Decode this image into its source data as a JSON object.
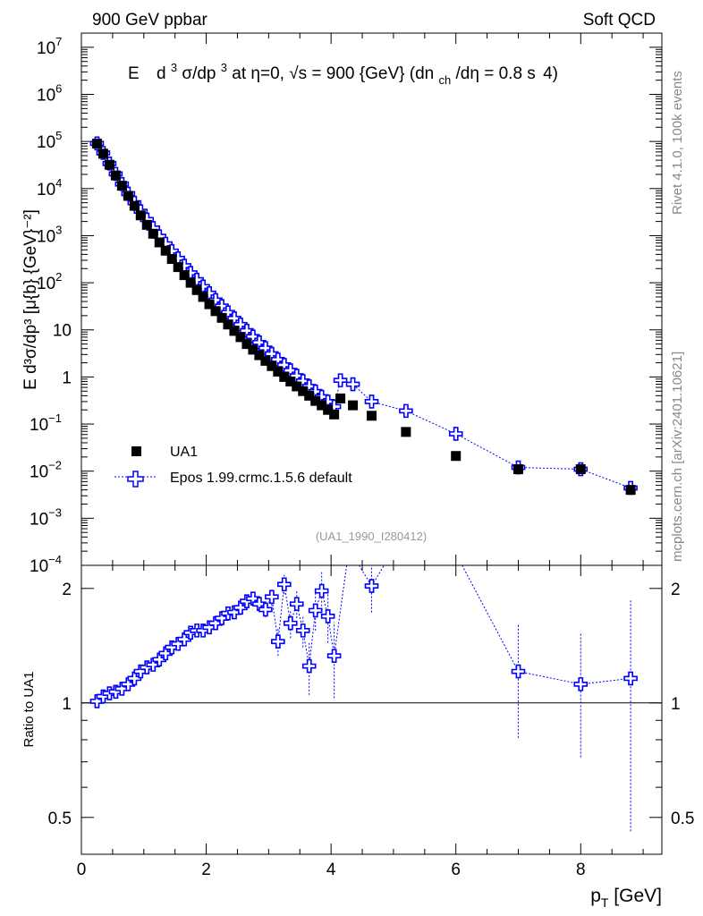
{
  "header": {
    "left": "900 GeV ppbar",
    "right": "Soft QCD"
  },
  "side_labels": {
    "top": "Rivet 4.1.0,  100k events",
    "bottom": "mcplots.cern.ch [arXiv:2401.10621]"
  },
  "chart_data": [
    {
      "type": "scatter",
      "panel": "main",
      "title_parts": {
        "e": "E",
        "d1": "d",
        "exp3": "3",
        "sigma": "σ/dp",
        "exp3b": "3",
        "eta": " at η=0, ",
        "sqrt": "√s",
        "mid": " = 900 {GeV} (dn",
        "sub": "ch",
        "tail": "/dη = 0.8 s",
        "end": "4)"
      },
      "ylabel": "E d³σ/dp³ [μ{b} {GeV}⁻²]",
      "yscale": "log",
      "ylim": [
        0.0001,
        20000000
      ],
      "xlim": [
        0,
        9.3
      ],
      "y_ticks": [
        {
          "value": 10000000,
          "label": "10",
          "exp": "7"
        },
        {
          "value": 1000000,
          "label": "10",
          "exp": "6"
        },
        {
          "value": 100000,
          "label": "10",
          "exp": "5"
        },
        {
          "value": 10000,
          "label": "10",
          "exp": "4"
        },
        {
          "value": 1000,
          "label": "10",
          "exp": "3"
        },
        {
          "value": 100,
          "label": "10",
          "exp": "2"
        },
        {
          "value": 10,
          "label": "10",
          "exp": ""
        },
        {
          "value": 1,
          "label": "1",
          "exp": ""
        },
        {
          "value": 0.1,
          "label": "10",
          "exp": "−1"
        },
        {
          "value": 0.01,
          "label": "10",
          "exp": "−2"
        },
        {
          "value": 0.001,
          "label": "10",
          "exp": "−3"
        },
        {
          "value": 0.0001,
          "label": "10",
          "exp": "−4"
        }
      ],
      "legend": {
        "data": "UA1",
        "mc": "Epos 1.99.crmc.1.5.6 default"
      },
      "analysis_tag": "(UA1_1990_I280412)",
      "series": [
        {
          "name": "UA1",
          "x": [
            0.25,
            0.35,
            0.45,
            0.55,
            0.65,
            0.75,
            0.85,
            0.95,
            1.05,
            1.15,
            1.25,
            1.35,
            1.45,
            1.55,
            1.65,
            1.75,
            1.85,
            1.95,
            2.05,
            2.15,
            2.25,
            2.35,
            2.45,
            2.55,
            2.65,
            2.75,
            2.85,
            2.95,
            3.05,
            3.15,
            3.25,
            3.35,
            3.45,
            3.55,
            3.65,
            3.75,
            3.85,
            3.95,
            4.05,
            4.15,
            4.35,
            4.65,
            5.2,
            6.0,
            7.0,
            8.0,
            8.8
          ],
          "y": [
            90000,
            55000,
            32000,
            19000,
            11500,
            7000,
            4300,
            2700,
            1700,
            1100,
            720,
            480,
            320,
            215,
            145,
            100,
            70,
            50,
            35,
            25,
            18,
            13,
            9.5,
            7,
            5,
            3.8,
            2.9,
            2.2,
            1.7,
            1.3,
            1.0,
            0.8,
            0.63,
            0.5,
            0.4,
            0.31,
            0.25,
            0.2,
            0.16,
            0.35,
            0.25,
            0.15,
            0.068,
            0.021,
            0.011,
            0.011,
            0.004
          ]
        },
        {
          "name": "Epos 1.99.crmc.1.5.6 default",
          "x": [
            0.25,
            0.35,
            0.45,
            0.55,
            0.65,
            0.75,
            0.85,
            0.95,
            1.05,
            1.15,
            1.25,
            1.35,
            1.45,
            1.55,
            1.65,
            1.75,
            1.85,
            1.95,
            2.05,
            2.15,
            2.25,
            2.35,
            2.45,
            2.55,
            2.65,
            2.75,
            2.85,
            2.95,
            3.05,
            3.15,
            3.25,
            3.35,
            3.45,
            3.55,
            3.65,
            3.75,
            3.85,
            3.95,
            4.05,
            4.15,
            4.35,
            4.65,
            5.2,
            6.0,
            7.0,
            8.0,
            8.8
          ],
          "y": [
            91000,
            57000,
            34000,
            20500,
            12500,
            7800,
            5000,
            3300,
            2200,
            1450,
            970,
            670,
            470,
            330,
            230,
            162,
            116,
            83,
            60,
            43,
            32,
            23.5,
            17.5,
            13,
            9.6,
            7.2,
            5.4,
            4.1,
            3.1,
            2.35,
            1.8,
            1.38,
            1.06,
            0.82,
            0.63,
            0.49,
            0.38,
            0.3,
            0.235,
            0.85,
            0.7,
            0.3,
            0.19,
            0.062,
            0.012,
            0.011,
            0.0044
          ]
        }
      ]
    },
    {
      "type": "scatter",
      "panel": "ratio",
      "ylabel": "Ratio to UA1",
      "xlabel": "p",
      "xlabel_sub": "T",
      "xlabel_unit": " [GeV]",
      "yscale": "log",
      "ylim": [
        0.4,
        2.3
      ],
      "xlim": [
        0,
        9.3
      ],
      "x_ticks": [
        0,
        2,
        4,
        6,
        8
      ],
      "y_ticks": [
        0.5,
        1,
        2
      ],
      "reference_line": 1,
      "series": [
        {
          "name": "Epos 1.99.crmc.1.5.6 default",
          "x": [
            0.25,
            0.35,
            0.45,
            0.55,
            0.65,
            0.75,
            0.85,
            0.95,
            1.05,
            1.15,
            1.25,
            1.35,
            1.45,
            1.55,
            1.65,
            1.75,
            1.85,
            1.95,
            2.05,
            2.15,
            2.25,
            2.35,
            2.45,
            2.55,
            2.65,
            2.75,
            2.85,
            2.95,
            3.05,
            3.15,
            3.25,
            3.35,
            3.45,
            3.55,
            3.65,
            3.75,
            3.85,
            3.95,
            4.05,
            4.65,
            7.0,
            8.0,
            8.8
          ],
          "y": [
            1.01,
            1.04,
            1.06,
            1.07,
            1.09,
            1.12,
            1.16,
            1.21,
            1.24,
            1.26,
            1.3,
            1.35,
            1.4,
            1.43,
            1.47,
            1.53,
            1.55,
            1.55,
            1.58,
            1.62,
            1.67,
            1.72,
            1.73,
            1.78,
            1.85,
            1.88,
            1.82,
            1.76,
            1.9,
            1.45,
            2.05,
            1.62,
            1.82,
            1.55,
            1.25,
            1.75,
            1.97,
            1.69,
            1.33,
            2.03,
            1.21,
            1.12,
            1.16
          ],
          "err_low": [
            0.02,
            0.02,
            0.02,
            0.02,
            0.02,
            0.02,
            0.02,
            0.02,
            0.02,
            0.03,
            0.03,
            0.03,
            0.03,
            0.03,
            0.03,
            0.04,
            0.04,
            0.04,
            0.04,
            0.05,
            0.05,
            0.05,
            0.06,
            0.06,
            0.07,
            0.07,
            0.08,
            0.08,
            0.1,
            0.12,
            0.12,
            0.14,
            0.15,
            0.15,
            0.2,
            0.2,
            0.25,
            0.25,
            0.3,
            0.3,
            0.4,
            0.4,
            0.7
          ],
          "err_high": [
            0.02,
            0.02,
            0.02,
            0.02,
            0.02,
            0.02,
            0.02,
            0.02,
            0.02,
            0.03,
            0.03,
            0.03,
            0.03,
            0.03,
            0.03,
            0.04,
            0.04,
            0.04,
            0.04,
            0.05,
            0.05,
            0.05,
            0.06,
            0.06,
            0.07,
            0.07,
            0.08,
            0.08,
            0.1,
            0.12,
            0.12,
            0.14,
            0.15,
            0.15,
            0.2,
            0.2,
            0.25,
            0.25,
            0.3,
            0.3,
            0.4,
            0.4,
            0.7
          ]
        }
      ],
      "offscale_segments": [
        {
          "x": [
            4.05,
            4.25
          ],
          "y": [
            1.33,
            3.0
          ]
        },
        {
          "x": [
            4.45,
            4.65
          ],
          "y": [
            3.0,
            2.03
          ]
        },
        {
          "x": [
            4.65,
            4.85
          ],
          "y": [
            2.03,
            3.0
          ]
        },
        {
          "x": [
            6.1,
            7.0
          ],
          "y": [
            3.0,
            1.21
          ]
        }
      ]
    }
  ],
  "colors": {
    "mc": "#0000ff",
    "data": "#000000",
    "tag": "#999999",
    "side": "#888888"
  }
}
